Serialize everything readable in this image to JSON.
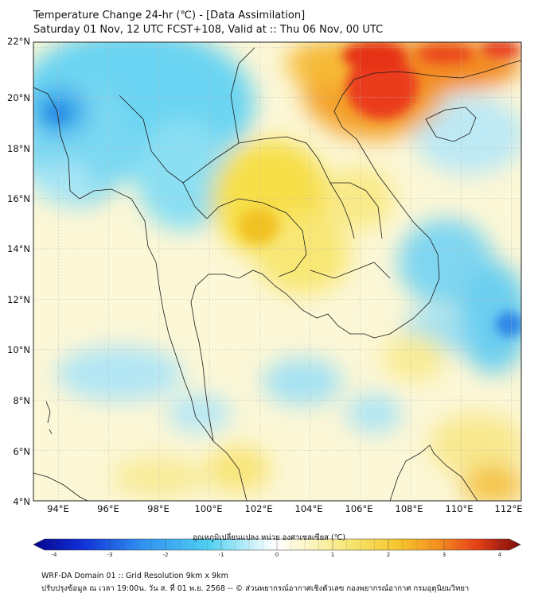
{
  "header": {
    "title_line1": "Temperature Change 24-hr (℃) - [Data Assimilation]",
    "title_line2": "Saturday 01 Nov, 12 UTC FCST+108, Valid at :: Thu 06 Nov, 00 UTC"
  },
  "map": {
    "lat_labels": [
      "22°N",
      "20°N",
      "18°N",
      "16°N",
      "14°N",
      "12°N",
      "10°N",
      "8°N",
      "6°N",
      "4°N"
    ],
    "lon_labels": [
      "94°E",
      "96°E",
      "98°E",
      "100°E",
      "102°E",
      "104°E",
      "106°E",
      "108°E",
      "110°E",
      "112°E"
    ],
    "lat_range": [
      4,
      22.2
    ],
    "lon_range": [
      93,
      112.4
    ]
  },
  "colorbar": {
    "label": "อุณหภูมิเปลี่ยนแปลง หน่วย องศาเซลเซียส (℃)",
    "ticks": [
      "-4",
      "-3",
      "-2",
      "-1",
      "0",
      "1",
      "2",
      "3",
      "4"
    ],
    "range": [
      -4,
      4
    ]
  },
  "footer": {
    "line1": "WRF-DA Domain 01 :: Grid Resolution 9km x 9km",
    "line2": "ปรับปรุงข้อมูล ณ เวลา 19:00น. วัน ส. ที่ 01 พ.ย. 2568 -- © ส่วนพยากรณ์อากาศเชิงตัวเลข กองพยากรณ์อากาศ กรมอุตุนิยมวิทยา"
  }
}
